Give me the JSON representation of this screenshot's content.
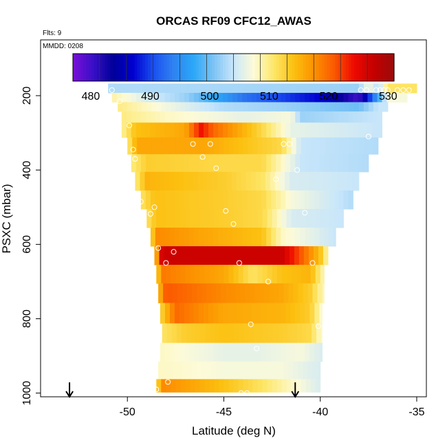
{
  "chart_data": {
    "type": "heatmap",
    "title": "ORCAS RF09 CFC12_AWAS",
    "notes": {
      "flights": "Flts: 9",
      "mmdd": "MMDD: 0208"
    },
    "xlabel": "Latitude (deg N)",
    "ylabel": "PSXC (mbar)",
    "xlim": [
      -54.5,
      -34.5
    ],
    "ylim": [
      1010,
      50
    ],
    "x_ticks": [
      -50,
      -45,
      -40,
      -35
    ],
    "y_ticks": [
      200,
      400,
      600,
      800,
      1000
    ],
    "colorbar": {
      "range": [
        477,
        531
      ],
      "ticks": [
        480,
        490,
        500,
        510,
        520,
        530
      ],
      "colors": [
        "#7a0fd8",
        "#3a0fc8",
        "#00009a",
        "#0000d0",
        "#1a4ff0",
        "#2f82f0",
        "#2ba7f8",
        "#7cc3f5",
        "#c8e6fa",
        "#fdfbd8",
        "#fde76a",
        "#fcc010",
        "#fc9200",
        "#fb5a00",
        "#ee0a00",
        "#c40000",
        "#9a0b0b"
      ]
    },
    "rows": [
      {
        "p": 180,
        "lat": [
          -51,
          -35
        ],
        "vals": [
          [
            -51,
            503
          ],
          [
            -38,
            502
          ],
          [
            -37.5,
            507
          ],
          [
            -37,
            503
          ],
          [
            -36.5,
            511
          ]
        ]
      },
      {
        "p": 205,
        "lat": [
          -50.8,
          -35.5
        ],
        "vals": [
          [
            -50.8,
            509
          ],
          [
            -49,
            505
          ],
          [
            -47,
            502
          ],
          [
            -44,
            493
          ],
          [
            -40,
            487
          ],
          [
            -38,
            480
          ],
          [
            -37,
            497
          ],
          [
            -36.5,
            507
          ]
        ]
      },
      {
        "p": 230,
        "lat": [
          -50.5,
          -36.5
        ],
        "vals": [
          [
            -50.5,
            510
          ],
          [
            -49,
            508
          ],
          [
            -45,
            503
          ],
          [
            -42,
            502
          ],
          [
            -38,
            500
          ],
          [
            -37,
            504
          ]
        ]
      },
      {
        "p": 255,
        "lat": [
          -50.3,
          -36.8
        ],
        "vals": [
          [
            -50.3,
            510
          ],
          [
            -48,
            508
          ],
          [
            -44,
            506
          ],
          [
            -41.5,
            507
          ],
          [
            -41,
            502
          ],
          [
            -37,
            504
          ]
        ]
      },
      {
        "p": 290,
        "lat": [
          -50.3,
          -36.8
        ],
        "vals": [
          [
            -50.3,
            509
          ],
          [
            -49.6,
            514
          ],
          [
            -47,
            516
          ],
          [
            -46.2,
            524
          ],
          [
            -45.5,
            520
          ],
          [
            -43,
            512
          ],
          [
            -41.5,
            506
          ],
          [
            -37,
            504
          ]
        ]
      },
      {
        "p": 335,
        "lat": [
          -50,
          -37
        ],
        "vals": [
          [
            -50,
            510
          ],
          [
            -49.5,
            516
          ],
          [
            -46,
            516
          ],
          [
            -44,
            514
          ],
          [
            -42,
            512
          ],
          [
            -41,
            504
          ],
          [
            -37,
            503
          ]
        ]
      },
      {
        "p": 380,
        "lat": [
          -49.8,
          -37.5
        ],
        "vals": [
          [
            -49.8,
            510
          ],
          [
            -49,
            513
          ],
          [
            -45,
            512
          ],
          [
            -43,
            512
          ],
          [
            -41,
            504
          ],
          [
            -37.5,
            503
          ]
        ]
      },
      {
        "p": 430,
        "lat": [
          -49.6,
          -38
        ],
        "vals": [
          [
            -49.6,
            510
          ],
          [
            -49,
            515
          ],
          [
            -45,
            513
          ],
          [
            -43,
            511
          ],
          [
            -41.5,
            505
          ],
          [
            -38,
            504
          ]
        ]
      },
      {
        "p": 480,
        "lat": [
          -49.3,
          -38.3
        ],
        "vals": [
          [
            -49.3,
            511
          ],
          [
            -48.6,
            514
          ],
          [
            -45,
            513
          ],
          [
            -43,
            512
          ],
          [
            -41.5,
            507
          ],
          [
            -38.3,
            503
          ]
        ]
      },
      {
        "p": 530,
        "lat": [
          -49,
          -38.8
        ],
        "vals": [
          [
            -49,
            511
          ],
          [
            -48.5,
            514
          ],
          [
            -45,
            513
          ],
          [
            -43,
            512
          ],
          [
            -41.5,
            505
          ],
          [
            -38.8,
            504
          ]
        ]
      },
      {
        "p": 580,
        "lat": [
          -48.8,
          -39.2
        ],
        "vals": [
          [
            -48.8,
            511
          ],
          [
            -48.5,
            518
          ],
          [
            -46,
            516
          ],
          [
            -43,
            514
          ],
          [
            -42,
            508
          ],
          [
            -39.2,
            504
          ]
        ]
      },
      {
        "p": 630,
        "lat": [
          -48.6,
          -39.6
        ],
        "vals": [
          [
            -48.6,
            512
          ],
          [
            -48.2,
            527
          ],
          [
            -42,
            527
          ],
          [
            -41,
            521
          ],
          [
            -40,
            514
          ],
          [
            -39.6,
            508
          ]
        ]
      },
      {
        "p": 680,
        "lat": [
          -48.5,
          -39.8
        ],
        "vals": [
          [
            -48.5,
            512
          ],
          [
            -48.2,
            519
          ],
          [
            -45,
            516
          ],
          [
            -43.5,
            511
          ],
          [
            -42,
            514
          ],
          [
            -40.5,
            515
          ],
          [
            -39.8,
            508
          ]
        ]
      },
      {
        "p": 730,
        "lat": [
          -48.4,
          -39.8
        ],
        "vals": [
          [
            -48.4,
            514
          ],
          [
            -48,
            521
          ],
          [
            -45,
            518
          ],
          [
            -42,
            516
          ],
          [
            -40.5,
            513
          ],
          [
            -39.8,
            508
          ]
        ]
      },
      {
        "p": 785,
        "lat": [
          -48.3,
          -39.9
        ],
        "vals": [
          [
            -48.3,
            512
          ],
          [
            -47.5,
            520
          ],
          [
            -45,
            516
          ],
          [
            -42,
            515
          ],
          [
            -40.5,
            513
          ],
          [
            -39.9,
            507
          ]
        ]
      },
      {
        "p": 840,
        "lat": [
          -48.2,
          -39.9
        ],
        "vals": [
          [
            -48.2,
            511
          ],
          [
            -47,
            513
          ],
          [
            -45,
            514
          ],
          [
            -42,
            513
          ],
          [
            -40.5,
            512
          ],
          [
            -39.9,
            507
          ]
        ]
      },
      {
        "p": 890,
        "lat": [
          -48.3,
          -39.9
        ],
        "vals": [
          [
            -48.3,
            508
          ],
          [
            -45,
            506
          ],
          [
            -43,
            506
          ],
          [
            -41,
            507
          ],
          [
            -39.9,
            505
          ]
        ]
      },
      {
        "p": 940,
        "lat": [
          -48.4,
          -40
        ],
        "vals": [
          [
            -48.4,
            508
          ],
          [
            -45,
            507
          ],
          [
            -42,
            507
          ],
          [
            -40,
            505
          ]
        ]
      },
      {
        "p": 985,
        "lat": [
          -48.5,
          -40
        ],
        "vals": [
          [
            -48.5,
            511
          ],
          [
            -48.2,
            518
          ],
          [
            -45,
            514
          ],
          [
            -43,
            511
          ],
          [
            -41,
            507
          ],
          [
            -40,
            505
          ]
        ]
      }
    ],
    "points": [
      [
        -50.8,
        185
      ],
      [
        -50.4,
        215
      ],
      [
        -49.9,
        280
      ],
      [
        -49.7,
        345
      ],
      [
        -49.6,
        370
      ],
      [
        -49.3,
        485
      ],
      [
        -48.8,
        518
      ],
      [
        -48.6,
        500
      ],
      [
        -48.4,
        610
      ],
      [
        -48,
        650
      ],
      [
        -47.6,
        620
      ],
      [
        -46.6,
        330
      ],
      [
        -46.1,
        365
      ],
      [
        -45.7,
        330
      ],
      [
        -45.4,
        395
      ],
      [
        -44.9,
        510
      ],
      [
        -44.5,
        545
      ],
      [
        -44.2,
        650
      ],
      [
        -43.6,
        815
      ],
      [
        -43.3,
        880
      ],
      [
        -42.7,
        700
      ],
      [
        -42.3,
        425
      ],
      [
        -41.9,
        330
      ],
      [
        -41.6,
        330
      ],
      [
        -41.2,
        400
      ],
      [
        -40.8,
        515
      ],
      [
        -40.4,
        650
      ],
      [
        -40.1,
        820
      ],
      [
        -39.8,
        1000
      ],
      [
        -39.5,
        1005
      ],
      [
        -37.9,
        185
      ],
      [
        -37.6,
        185
      ],
      [
        -37.5,
        310
      ],
      [
        -37.3,
        570
      ],
      [
        -37.1,
        185
      ],
      [
        -36.9,
        185
      ],
      [
        -36.7,
        185
      ],
      [
        -36.5,
        185
      ],
      [
        -36.3,
        240
      ],
      [
        -36,
        185
      ],
      [
        -35.7,
        185
      ],
      [
        -35.4,
        185
      ],
      [
        -44.1,
        1000
      ],
      [
        -43.8,
        1000
      ],
      [
        -48.5,
        990
      ],
      [
        -47.9,
        970
      ]
    ],
    "markers_lat": [
      -53,
      -41.3
    ]
  }
}
